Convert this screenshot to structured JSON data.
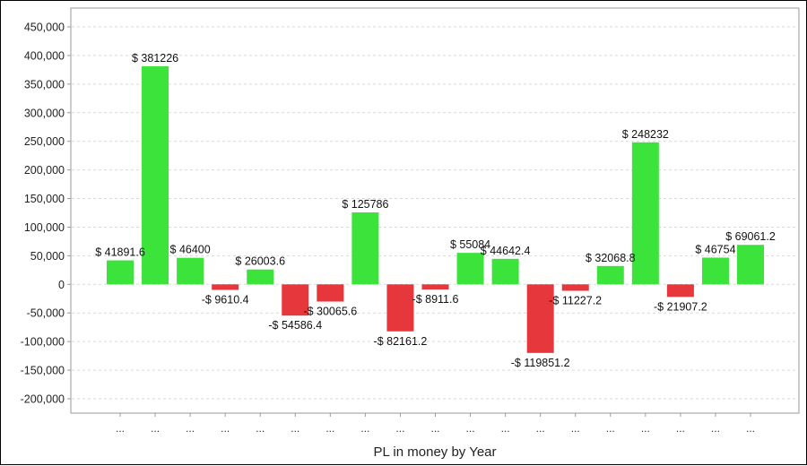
{
  "chart_data": {
    "type": "bar",
    "title": "",
    "xlabel": "PL in money by Year",
    "ylabel": "",
    "ylim": [
      -200000,
      450000
    ],
    "y_ticks": [
      450000,
      400000,
      350000,
      300000,
      250000,
      200000,
      150000,
      100000,
      50000,
      0,
      -50000,
      -100000,
      -150000,
      -200000
    ],
    "y_tick_labels": [
      "450,000",
      "400,000",
      "350,000",
      "300,000",
      "250,000",
      "200,000",
      "150,000",
      "100,000",
      "50,000",
      "0",
      "-50,000",
      "-100,000",
      "-150,000",
      "-200,000"
    ],
    "grid": true,
    "legend": "none",
    "categories": [
      "...",
      "...",
      "...",
      "...",
      "...",
      "...",
      "...",
      "...",
      "...",
      "...",
      "...",
      "...",
      "...",
      "...",
      "...",
      "...",
      "...",
      "...",
      "..."
    ],
    "values": [
      41891.6,
      381226,
      46400,
      -9610.4,
      26003.6,
      -54586.4,
      -30065.6,
      125786,
      -82161.2,
      -8911.6,
      55084,
      44642.4,
      -119851.2,
      -11227.2,
      32068.8,
      248232,
      -21907.2,
      46754,
      69061.2
    ],
    "data_labels": [
      "$ 41891.6",
      "$ 381226",
      "$ 46400",
      "-$ 9610.4",
      "$ 26003.6",
      "-$ 54586.4",
      "-$ 30065.6",
      "$ 125786",
      "-$ 82161.2",
      "-$ 8911.6",
      "$ 55084",
      "$ 44642.4",
      "-$ 119851.2",
      "-$ 11227.2",
      "$ 32068.8",
      "$ 248232",
      "-$ 21907.2",
      "$ 46754",
      "$ 69061.2"
    ],
    "colors": {
      "positive": "#3be33b",
      "negative": "#e5373c",
      "grid": "#d9d9d9",
      "axis": "#9a9a9a"
    }
  }
}
